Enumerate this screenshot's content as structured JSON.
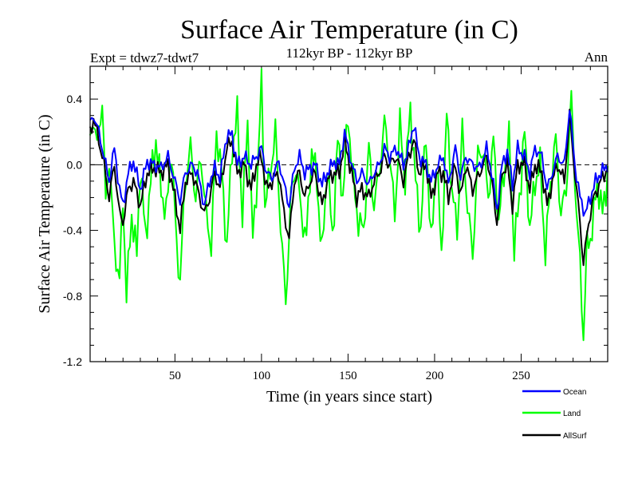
{
  "chart_data": {
    "type": "line",
    "title": "Surface Air Temperature (in C)",
    "subtitle_left": "Expt = tdwz7-tdwt7",
    "subtitle_center": "112kyr BP - 112kyr BP",
    "subtitle_right": "Ann",
    "xlabel": "Time (in years since start)",
    "ylabel": "Surface Air Temperature (in C)",
    "xlim": [
      1,
      300
    ],
    "ylim": [
      -1.2,
      0.6
    ],
    "x_ticks": [
      50,
      100,
      150,
      200,
      250
    ],
    "x_tick_labels": [
      "50",
      "100",
      "150",
      "200",
      "250"
    ],
    "y_ticks": [
      0.4,
      0.0,
      -0.4,
      -0.8,
      -1.2
    ],
    "y_tick_labels": [
      "0.4",
      "0.0",
      "-0.4",
      "-0.8",
      "-1.2"
    ],
    "zero_line": "dashed",
    "legend_position": "bottom-right",
    "series": [
      {
        "name": "Ocean",
        "color": "#0000ff",
        "keypoints": [
          [
            1,
            0.25
          ],
          [
            3,
            0.3
          ],
          [
            6,
            0.2
          ],
          [
            9,
            0.05
          ],
          [
            12,
            -0.1
          ],
          [
            15,
            0.1
          ],
          [
            18,
            -0.15
          ],
          [
            20,
            -0.25
          ],
          [
            23,
            -0.05
          ],
          [
            26,
            0.02
          ],
          [
            30,
            -0.15
          ],
          [
            34,
            0.02
          ],
          [
            38,
            0.0
          ],
          [
            42,
            -0.02
          ],
          [
            46,
            0.05
          ],
          [
            50,
            -0.1
          ],
          [
            53,
            -0.22
          ],
          [
            56,
            -0.05
          ],
          [
            60,
            0.0
          ],
          [
            63,
            -0.05
          ],
          [
            67,
            -0.25
          ],
          [
            70,
            -0.1
          ],
          [
            73,
            -0.02
          ],
          [
            76,
            -0.08
          ],
          [
            80,
            0.18
          ],
          [
            83,
            0.18
          ],
          [
            86,
            0.0
          ],
          [
            90,
            0.05
          ],
          [
            94,
            0.0
          ],
          [
            97,
            0.05
          ],
          [
            100,
            0.1
          ],
          [
            103,
            -0.05
          ],
          [
            106,
            -0.08
          ],
          [
            110,
            0.02
          ],
          [
            113,
            -0.12
          ],
          [
            116,
            -0.25
          ],
          [
            119,
            -0.02
          ],
          [
            122,
            0.05
          ],
          [
            125,
            -0.05
          ],
          [
            128,
            -0.02
          ],
          [
            131,
            0.0
          ],
          [
            135,
            -0.12
          ],
          [
            138,
            -0.05
          ],
          [
            142,
            0.02
          ],
          [
            145,
            0.0
          ],
          [
            148,
            0.2
          ],
          [
            151,
            0.05
          ],
          [
            155,
            -0.1
          ],
          [
            158,
            -0.05
          ],
          [
            162,
            -0.12
          ],
          [
            165,
            -0.05
          ],
          [
            168,
            0.0
          ],
          [
            171,
            0.1
          ],
          [
            174,
            0.05
          ],
          [
            178,
            0.1
          ],
          [
            182,
            0.0
          ],
          [
            185,
            0.1
          ],
          [
            188,
            0.25
          ],
          [
            191,
            0.05
          ],
          [
            195,
            0.0
          ],
          [
            198,
            -0.1
          ],
          [
            202,
            0.0
          ],
          [
            205,
            0.05
          ],
          [
            208,
            -0.12
          ],
          [
            212,
            0.1
          ],
          [
            215,
            -0.08
          ],
          [
            218,
            0.05
          ],
          [
            222,
            0.0
          ],
          [
            226,
            -0.02
          ],
          [
            230,
            0.1
          ],
          [
            233,
            -0.05
          ],
          [
            236,
            -0.28
          ],
          [
            239,
            0.0
          ],
          [
            242,
            0.08
          ],
          [
            245,
            -0.12
          ],
          [
            248,
            0.1
          ],
          [
            252,
            0.05
          ],
          [
            255,
            -0.05
          ],
          [
            258,
            0.1
          ],
          [
            262,
            0.05
          ],
          [
            265,
            -0.15
          ],
          [
            268,
            -0.05
          ],
          [
            271,
            0.05
          ],
          [
            275,
            0.0
          ],
          [
            278,
            0.35
          ],
          [
            281,
            0.0
          ],
          [
            284,
            -0.2
          ],
          [
            287,
            -0.3
          ],
          [
            290,
            -0.2
          ],
          [
            293,
            -0.1
          ],
          [
            296,
            -0.05
          ],
          [
            300,
            0.0
          ]
        ]
      },
      {
        "name": "Land",
        "color": "#00ff00",
        "keypoints": [
          [
            1,
            0.15
          ],
          [
            3,
            0.3
          ],
          [
            5,
            0.1
          ],
          [
            8,
            0.4
          ],
          [
            10,
            -0.25
          ],
          [
            12,
            0.05
          ],
          [
            15,
            -0.5
          ],
          [
            18,
            -0.7
          ],
          [
            20,
            -0.2
          ],
          [
            22,
            -0.8
          ],
          [
            25,
            -0.3
          ],
          [
            28,
            -0.55
          ],
          [
            30,
            0.0
          ],
          [
            33,
            -0.45
          ],
          [
            36,
            -0.1
          ],
          [
            39,
            0.15
          ],
          [
            42,
            -0.15
          ],
          [
            45,
            -0.3
          ],
          [
            48,
            0.1
          ],
          [
            51,
            -0.5
          ],
          [
            53,
            -0.7
          ],
          [
            56,
            -0.1
          ],
          [
            59,
            0.1
          ],
          [
            62,
            -0.2
          ],
          [
            65,
            0.05
          ],
          [
            68,
            -0.3
          ],
          [
            71,
            -0.5
          ],
          [
            74,
            0.2
          ],
          [
            77,
            -0.05
          ],
          [
            80,
            -0.5
          ],
          [
            83,
            0.1
          ],
          [
            86,
            0.3
          ],
          [
            89,
            -0.3
          ],
          [
            92,
            0.25
          ],
          [
            95,
            -0.45
          ],
          [
            98,
            0.0
          ],
          [
            100,
            0.5
          ],
          [
            102,
            -0.25
          ],
          [
            105,
            -0.05
          ],
          [
            108,
            0.2
          ],
          [
            111,
            -0.35
          ],
          [
            114,
            -0.85
          ],
          [
            117,
            -0.2
          ],
          [
            120,
            0.0
          ],
          [
            123,
            -0.3
          ],
          [
            126,
            -0.45
          ],
          [
            129,
            0.1
          ],
          [
            132,
            -0.1
          ],
          [
            135,
            -0.55
          ],
          [
            138,
            0.0
          ],
          [
            141,
            -0.45
          ],
          [
            144,
            0.15
          ],
          [
            147,
            -0.2
          ],
          [
            150,
            0.3
          ],
          [
            153,
            -0.1
          ],
          [
            156,
            -0.35
          ],
          [
            159,
            -0.4
          ],
          [
            162,
            0.1
          ],
          [
            165,
            -0.25
          ],
          [
            168,
            -0.05
          ],
          [
            171,
            0.25
          ],
          [
            174,
            0.05
          ],
          [
            177,
            -0.3
          ],
          [
            180,
            0.25
          ],
          [
            183,
            -0.1
          ],
          [
            186,
            0.35
          ],
          [
            189,
            -0.1
          ],
          [
            192,
            -0.4
          ],
          [
            195,
            0.2
          ],
          [
            198,
            -0.5
          ],
          [
            201,
            0.05
          ],
          [
            204,
            -0.55
          ],
          [
            207,
            0.3
          ],
          [
            210,
            -0.15
          ],
          [
            213,
            -0.4
          ],
          [
            216,
            0.2
          ],
          [
            219,
            -0.25
          ],
          [
            222,
            -0.55
          ],
          [
            225,
            0.05
          ],
          [
            228,
            0.1
          ],
          [
            231,
            -0.2
          ],
          [
            234,
            0.15
          ],
          [
            237,
            -0.35
          ],
          [
            240,
            -0.05
          ],
          [
            243,
            0.15
          ],
          [
            246,
            -0.5
          ],
          [
            249,
            -0.2
          ],
          [
            252,
            0.2
          ],
          [
            255,
            -0.4
          ],
          [
            258,
            -0.1
          ],
          [
            261,
            0.0
          ],
          [
            264,
            -0.55
          ],
          [
            267,
            -0.1
          ],
          [
            270,
            0.15
          ],
          [
            273,
            -0.3
          ],
          [
            276,
            -0.15
          ],
          [
            279,
            0.4
          ],
          [
            282,
            -0.3
          ],
          [
            284,
            -0.6
          ],
          [
            286,
            -1.05
          ],
          [
            288,
            -0.5
          ],
          [
            291,
            -0.4
          ],
          [
            294,
            -0.1
          ],
          [
            297,
            -0.3
          ],
          [
            300,
            -0.05
          ]
        ]
      },
      {
        "name": "AllSurf",
        "color": "#000000",
        "keypoints": [
          [
            1,
            0.2
          ],
          [
            3,
            0.28
          ],
          [
            6,
            0.15
          ],
          [
            9,
            0.0
          ],
          [
            12,
            -0.2
          ],
          [
            15,
            0.0
          ],
          [
            18,
            -0.3
          ],
          [
            20,
            -0.35
          ],
          [
            23,
            -0.15
          ],
          [
            26,
            -0.1
          ],
          [
            30,
            -0.25
          ],
          [
            34,
            -0.05
          ],
          [
            38,
            -0.02
          ],
          [
            42,
            -0.05
          ],
          [
            46,
            0.0
          ],
          [
            50,
            -0.2
          ],
          [
            53,
            -0.4
          ],
          [
            56,
            -0.1
          ],
          [
            60,
            -0.05
          ],
          [
            63,
            -0.15
          ],
          [
            67,
            -0.3
          ],
          [
            70,
            -0.2
          ],
          [
            73,
            -0.05
          ],
          [
            76,
            -0.15
          ],
          [
            80,
            0.1
          ],
          [
            83,
            0.15
          ],
          [
            86,
            -0.05
          ],
          [
            90,
            0.0
          ],
          [
            94,
            -0.15
          ],
          [
            97,
            0.0
          ],
          [
            100,
            0.05
          ],
          [
            103,
            -0.15
          ],
          [
            106,
            -0.1
          ],
          [
            110,
            -0.05
          ],
          [
            113,
            -0.3
          ],
          [
            116,
            -0.45
          ],
          [
            119,
            -0.1
          ],
          [
            122,
            -0.05
          ],
          [
            125,
            -0.2
          ],
          [
            128,
            -0.1
          ],
          [
            131,
            -0.05
          ],
          [
            135,
            -0.25
          ],
          [
            138,
            -0.1
          ],
          [
            142,
            -0.05
          ],
          [
            145,
            -0.05
          ],
          [
            148,
            0.15
          ],
          [
            151,
            0.0
          ],
          [
            155,
            -0.2
          ],
          [
            158,
            -0.15
          ],
          [
            162,
            -0.2
          ],
          [
            165,
            -0.1
          ],
          [
            168,
            -0.05
          ],
          [
            171,
            0.05
          ],
          [
            174,
            0.0
          ],
          [
            178,
            0.05
          ],
          [
            182,
            -0.1
          ],
          [
            185,
            0.05
          ],
          [
            188,
            0.15
          ],
          [
            191,
            -0.05
          ],
          [
            195,
            0.0
          ],
          [
            198,
            -0.2
          ],
          [
            202,
            -0.05
          ],
          [
            205,
            -0.05
          ],
          [
            208,
            -0.2
          ],
          [
            212,
            0.0
          ],
          [
            215,
            -0.2
          ],
          [
            218,
            0.0
          ],
          [
            222,
            -0.15
          ],
          [
            226,
            -0.05
          ],
          [
            230,
            0.05
          ],
          [
            233,
            -0.1
          ],
          [
            236,
            -0.35
          ],
          [
            239,
            -0.05
          ],
          [
            242,
            0.0
          ],
          [
            245,
            -0.25
          ],
          [
            248,
            0.0
          ],
          [
            252,
            0.0
          ],
          [
            255,
            -0.15
          ],
          [
            258,
            0.0
          ],
          [
            262,
            -0.05
          ],
          [
            265,
            -0.25
          ],
          [
            268,
            -0.1
          ],
          [
            271,
            0.0
          ],
          [
            275,
            -0.1
          ],
          [
            278,
            0.3
          ],
          [
            281,
            -0.05
          ],
          [
            284,
            -0.35
          ],
          [
            286,
            -0.6
          ],
          [
            289,
            -0.35
          ],
          [
            292,
            -0.2
          ],
          [
            296,
            -0.1
          ],
          [
            300,
            -0.02
          ]
        ]
      }
    ]
  }
}
